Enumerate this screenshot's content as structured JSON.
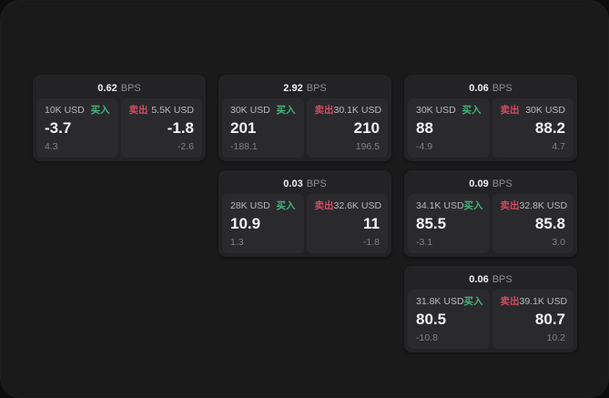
{
  "colors": {
    "screen": "#1a1a1b",
    "card": "#232326",
    "tile": "#2a2a2d",
    "green": "#43b479",
    "red": "#d44a5e"
  },
  "labels": {
    "buy": "买入",
    "sell": "卖出",
    "bps_unit": "BPS"
  },
  "cards": [
    {
      "bps": "0.62",
      "buy": {
        "amount": "10K USD",
        "price": "-3.7",
        "delta": "4.3"
      },
      "sell": {
        "amount": "5.5K USD",
        "price": "-1.8",
        "delta": "-2.6"
      }
    },
    {
      "bps": "2.92",
      "buy": {
        "amount": "30K USD",
        "price": "201",
        "delta": "-188.1"
      },
      "sell": {
        "amount": "30.1K USD",
        "price": "210",
        "delta": "196.5"
      }
    },
    {
      "bps": "0.06",
      "buy": {
        "amount": "30K USD",
        "price": "88",
        "delta": "-4.9"
      },
      "sell": {
        "amount": "30K USD",
        "price": "88.2",
        "delta": "4.7"
      }
    },
    {
      "bps": "0.03",
      "buy": {
        "amount": "28K USD",
        "price": "10.9",
        "delta": "1.3"
      },
      "sell": {
        "amount": "32.6K USD",
        "price": "11",
        "delta": "-1.8"
      }
    },
    {
      "bps": "0.09",
      "buy": {
        "amount": "34.1K USD",
        "price": "85.5",
        "delta": "-3.1"
      },
      "sell": {
        "amount": "32.8K USD",
        "price": "85.8",
        "delta": "3.0"
      }
    },
    {
      "bps": "0.06",
      "buy": {
        "amount": "31.8K USD",
        "price": "80.5",
        "delta": "-10.8"
      },
      "sell": {
        "amount": "39.1K USD",
        "price": "80.7",
        "delta": "10.2"
      }
    }
  ]
}
